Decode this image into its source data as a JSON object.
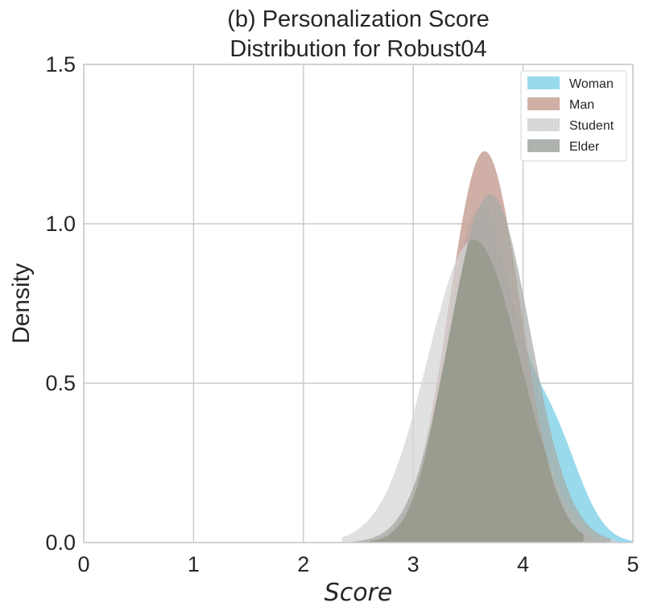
{
  "chart_data": {
    "type": "area",
    "kind": "kde",
    "title": [
      "(b) Personalization Score",
      "Distribution for Robust04"
    ],
    "xlabel": "Score",
    "ylabel": "Density",
    "xlim": [
      0,
      5
    ],
    "ylim": [
      0,
      1.5
    ],
    "x_ticks": [
      "0",
      "1",
      "2",
      "3",
      "4",
      "5"
    ],
    "y_ticks": [
      "0.0",
      "0.5",
      "1.0",
      "1.5"
    ],
    "grid": true,
    "legend_position": "top-right",
    "series": [
      {
        "name": "Woman",
        "color": "#87d3ea",
        "pattern": "solid",
        "components": [
          {
            "weight": 0.78,
            "mu": 3.6,
            "sigma": 0.3
          },
          {
            "weight": 0.22,
            "mu": 4.25,
            "sigma": 0.26
          }
        ],
        "range": [
          2.55,
          5.0
        ]
      },
      {
        "name": "Man",
        "color": "#c8a196",
        "pattern": "solid",
        "components": [
          {
            "weight": 1.0,
            "mu": 3.65,
            "sigma": 0.325
          }
        ],
        "range": [
          2.5,
          4.85
        ]
      },
      {
        "name": "Student",
        "color": "#d8d8d8",
        "pattern": "hatched",
        "components": [
          {
            "weight": 1.0,
            "mu": 3.55,
            "sigma": 0.42
          }
        ],
        "range": [
          2.35,
          4.85
        ]
      },
      {
        "name": "Elder",
        "color": "#a5aba4",
        "pattern": "dotted",
        "components": [
          {
            "weight": 1.0,
            "mu": 3.7,
            "sigma": 0.365
          }
        ],
        "range": [
          2.45,
          4.8
        ]
      }
    ],
    "overlap_color": "#979a8c"
  }
}
